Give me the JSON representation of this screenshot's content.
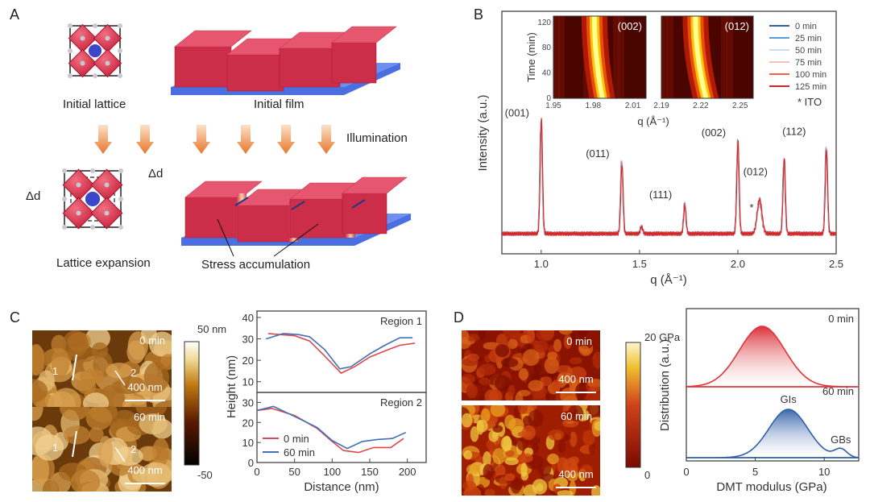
{
  "panels": {
    "a": {
      "label": "A",
      "initial_lattice": "Initial lattice",
      "initial_film": "Initial film",
      "illumination": "Illumination",
      "lattice_expansion": "Lattice expansion",
      "stress_accumulation": "Stress accumulation",
      "delta_d": "Δd"
    },
    "b": {
      "label": "B"
    },
    "c": {
      "label": "C",
      "image_times": [
        "0 min",
        "60 min"
      ],
      "scale_bar": "400 nm",
      "line_labels": [
        "1",
        "2"
      ],
      "colorbar_max": "50 nm",
      "colorbar_min": "-50"
    },
    "d": {
      "label": "D",
      "image_times": [
        "0 min",
        "60 min"
      ],
      "scale_bar": "400 nm",
      "colorbar_max": "20 GPa",
      "colorbar_min": "0"
    }
  },
  "colors": {
    "red": "#e03a3a",
    "blue": "#3f6fb5",
    "film_red": "#d8344f",
    "substrate_blue": "#4a6fe0"
  },
  "chart_data": [
    {
      "id": "xrd",
      "type": "line",
      "xlabel": "q (Å⁻¹)",
      "ylabel": "Intensity (a.u.)",
      "xlim": [
        0.8,
        2.5
      ],
      "xticks": [
        "1.0",
        "1.5",
        "2.0",
        "2.5"
      ],
      "legend": [
        "0 min",
        "25 min",
        "50 min",
        "75 min",
        "100 min",
        "125 min"
      ],
      "legend_colors": [
        "#2f5fa8",
        "#5b9bd8",
        "#c9dcf0",
        "#f5c3b5",
        "#f0624a",
        "#d0282a"
      ],
      "legend_placement": "top-right",
      "note": "* ITO",
      "peaks": [
        {
          "q": 1.0,
          "intensity": 0.95,
          "label": "(001)"
        },
        {
          "q": 1.41,
          "intensity": 0.6,
          "label": "(011)"
        },
        {
          "q": 1.51,
          "intensity": 0.06,
          "label": ""
        },
        {
          "q": 1.73,
          "intensity": 0.25,
          "label": "(111)"
        },
        {
          "q": 2.0,
          "intensity": 0.78,
          "label": "(002)"
        },
        {
          "q": 2.11,
          "intensity": 0.28,
          "label": "(012)"
        },
        {
          "q": 2.235,
          "intensity": 0.62,
          "label": ""
        },
        {
          "q": 2.45,
          "intensity": 0.72,
          "label": "(112)"
        }
      ],
      "ito_marker": {
        "q": 2.07,
        "label": "*"
      },
      "peak_label_extra": "(112)"
    },
    {
      "id": "xrd-inset",
      "type": "heatmap",
      "ylabel": "Time (min)",
      "xlabel": "q (Å⁻¹)",
      "ylim": [
        0,
        130
      ],
      "yticks": [
        "0",
        "40",
        "80",
        "120"
      ],
      "maps": [
        {
          "label": "(002)",
          "xlim": [
            1.95,
            2.02
          ],
          "xticks": [
            "1.95",
            "1.98",
            "2.01"
          ],
          "center_t0": 1.987,
          "center_t120": 1.981
        },
        {
          "label": "(012)",
          "xlim": [
            2.19,
            2.26
          ],
          "xticks": [
            "2.19",
            "2.22",
            "2.25"
          ],
          "center_t0": 2.224,
          "center_t120": 2.216
        }
      ]
    },
    {
      "id": "height-profile",
      "type": "line",
      "xlabel": "Distance (nm)",
      "ylabel": "Height (nm)",
      "xlim": [
        0,
        225
      ],
      "xticks": [
        "0",
        "50",
        "100",
        "150",
        "200"
      ],
      "regions": [
        {
          "name": "Region 1",
          "ylim": [
            5,
            43
          ],
          "yticks": [
            "10",
            "20",
            "30",
            "40"
          ],
          "series": [
            {
              "name": "0 min",
              "color": "#e0474c",
              "points": [
                [
                  15,
                  32.5
                ],
                [
                  30,
                  32
                ],
                [
                  50,
                  31.5
                ],
                [
                  70,
                  29
                ],
                [
                  90,
                  22
                ],
                [
                  112,
                  14
                ],
                [
                  130,
                  17
                ],
                [
                  150,
                  21.5
                ],
                [
                  175,
                  25
                ],
                [
                  190,
                  27
                ],
                [
                  210,
                  28
                ]
              ]
            },
            {
              "name": "60 min",
              "color": "#3f6fb5",
              "points": [
                [
                  12,
                  30
                ],
                [
                  35,
                  32.5
                ],
                [
                  55,
                  32
                ],
                [
                  70,
                  31
                ],
                [
                  90,
                  25
                ],
                [
                  110,
                  16
                ],
                [
                  125,
                  17
                ],
                [
                  150,
                  23
                ],
                [
                  170,
                  27
                ],
                [
                  190,
                  30.5
                ],
                [
                  207,
                  30.5
                ]
              ]
            }
          ]
        },
        {
          "name": "Region 2",
          "ylim": [
            0,
            35
          ],
          "yticks": [
            "0",
            "10",
            "20",
            "30"
          ],
          "series": [
            {
              "name": "0 min",
              "color": "#e0474c",
              "points": [
                [
                  0,
                  26
                ],
                [
                  20,
                  27
                ],
                [
                  50,
                  23.5
                ],
                [
                  80,
                  17
                ],
                [
                  100,
                  10.5
                ],
                [
                  115,
                  6
                ],
                [
                  135,
                  5
                ],
                [
                  155,
                  7.5
                ],
                [
                  178,
                  7.5
                ],
                [
                  195,
                  12
                ]
              ]
            },
            {
              "name": "60 min",
              "color": "#3f6fb5",
              "points": [
                [
                  0,
                  26
                ],
                [
                  22,
                  28
                ],
                [
                  50,
                  23
                ],
                [
                  80,
                  17.5
                ],
                [
                  100,
                  11
                ],
                [
                  120,
                  7
                ],
                [
                  140,
                  10.5
                ],
                [
                  160,
                  11.5
                ],
                [
                  180,
                  12
                ],
                [
                  198,
                  15
                ]
              ]
            }
          ]
        }
      ],
      "legend": [
        "0 min",
        "60 min"
      ]
    },
    {
      "id": "dmt-distribution",
      "type": "area",
      "xlabel": "DMT modulus (GPa)",
      "ylabel": "Distribution (a.u.)",
      "xlim": [
        0,
        12.5
      ],
      "xticks": [
        "0",
        "5",
        "10"
      ],
      "series": [
        {
          "name": "0 min",
          "color": "#e0343a",
          "components": [
            {
              "center": 5.5,
              "sigma": 1.65,
              "amplitude": 1.0
            }
          ]
        },
        {
          "name": "60 min",
          "color": "#2f5fa8",
          "components": [
            {
              "center": 7.4,
              "sigma": 1.4,
              "amplitude": 1.0,
              "label": "GIs"
            },
            {
              "center": 11.2,
              "sigma": 0.45,
              "amplitude": 0.17,
              "label": "GBs"
            }
          ]
        }
      ]
    }
  ]
}
